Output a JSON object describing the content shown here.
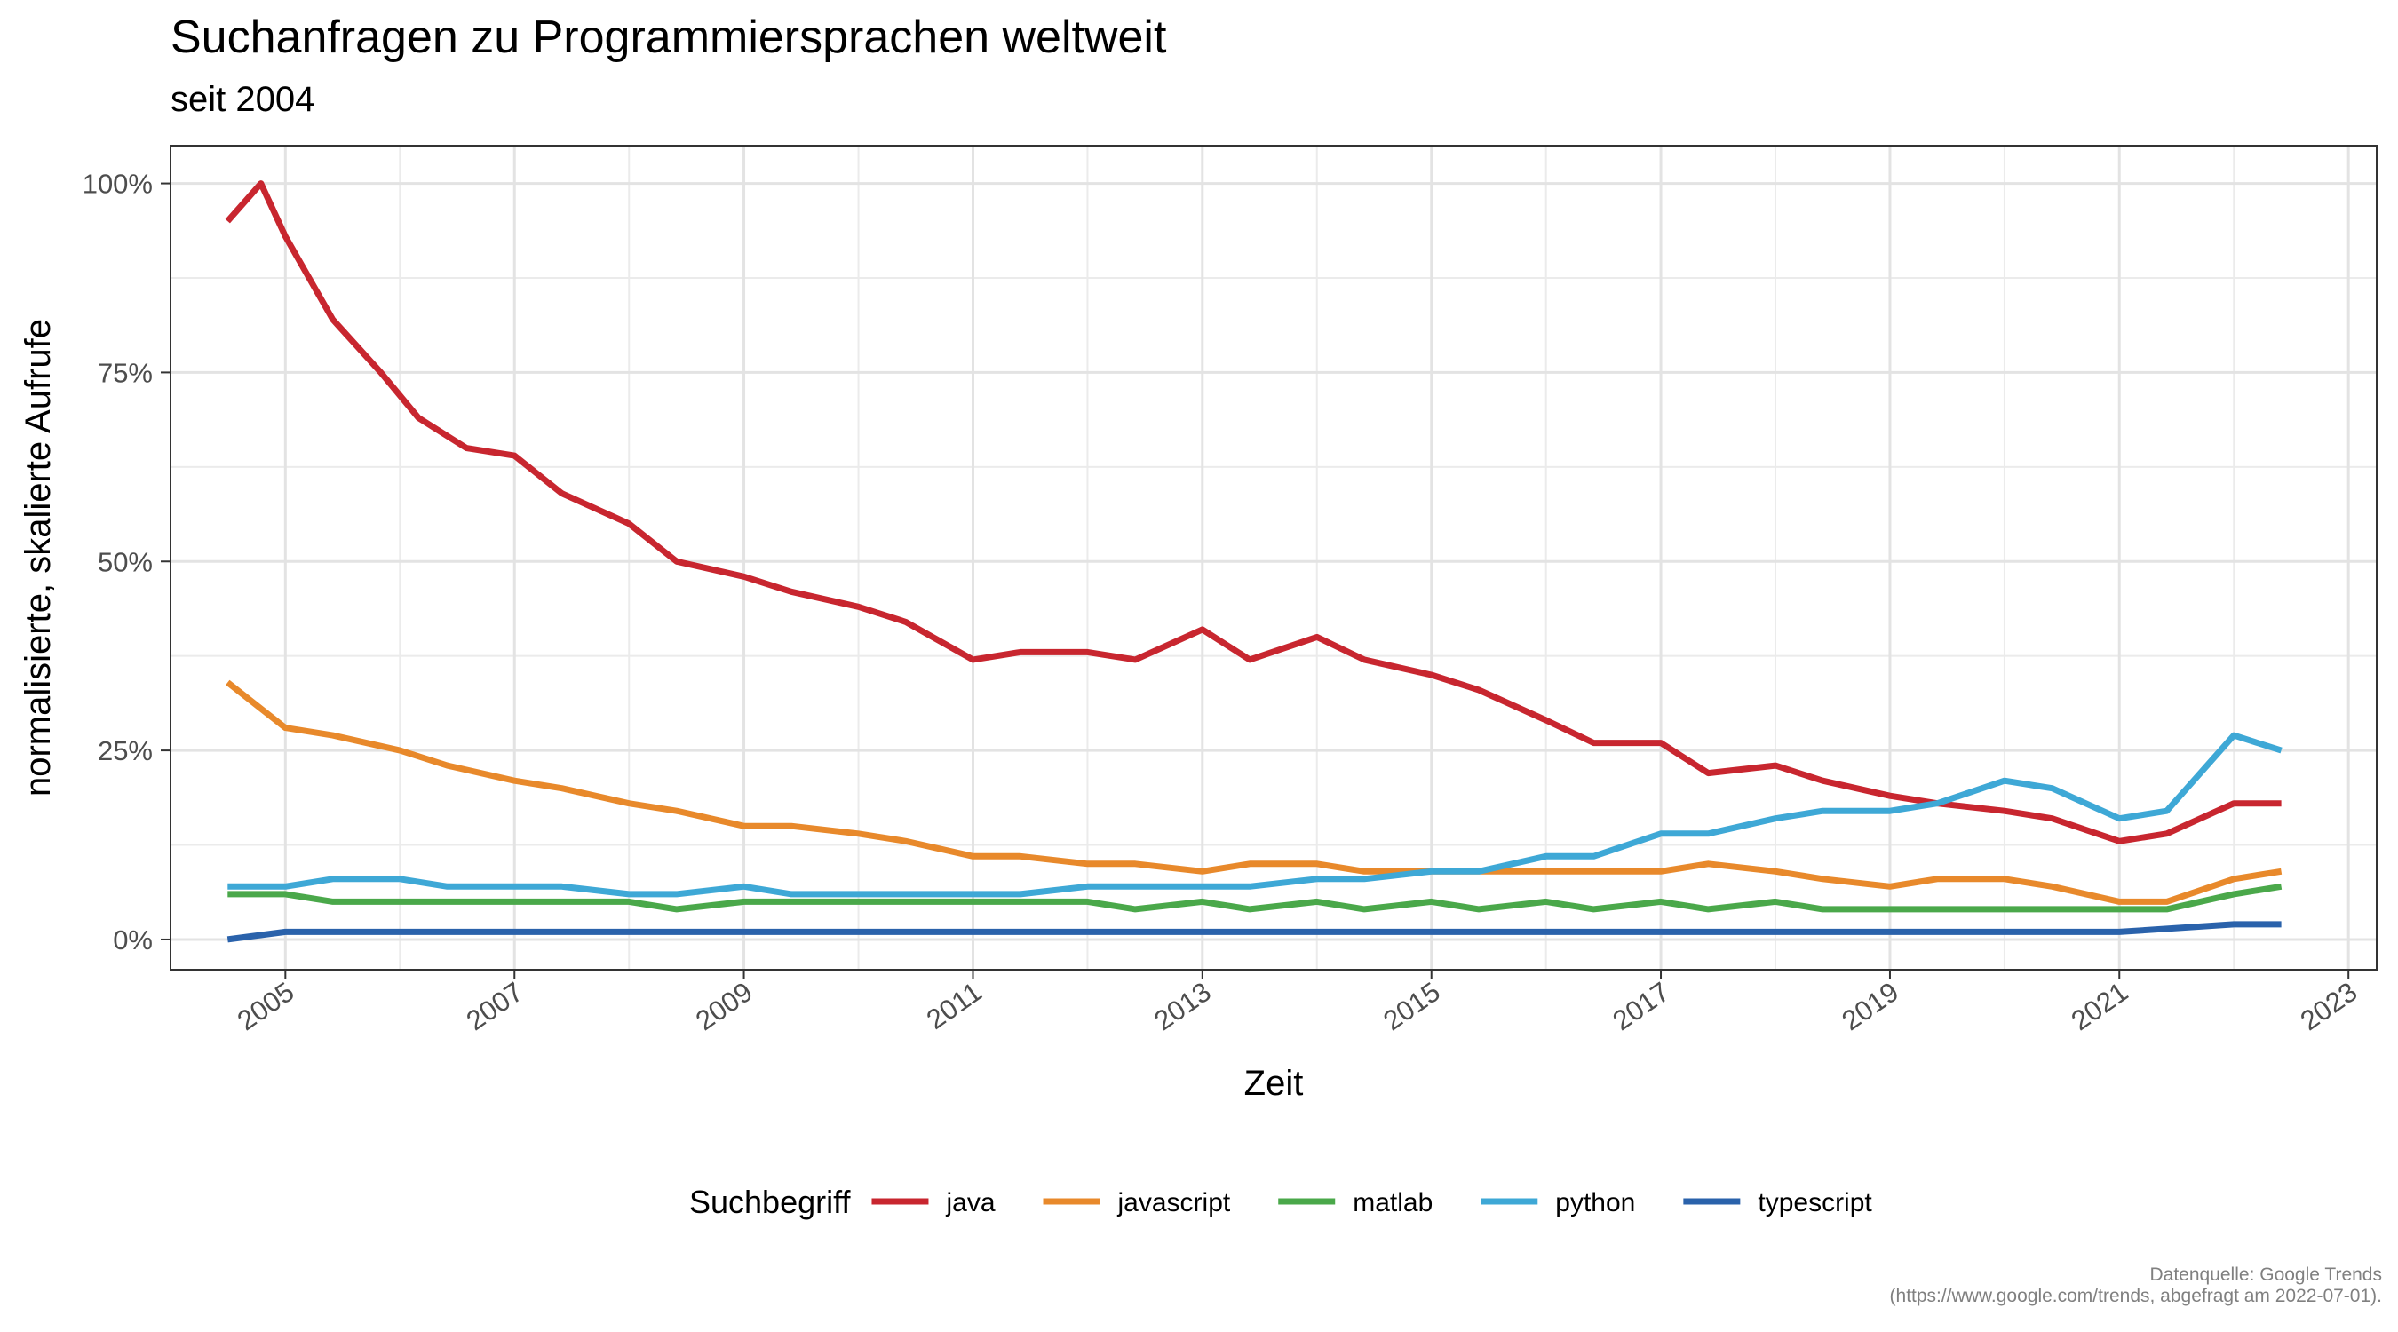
{
  "chart_data": {
    "type": "line",
    "title": "Suchanfragen zu Programmiersprachen weltweit",
    "subtitle": "seit 2004",
    "xlabel": "Zeit",
    "ylabel": "normalisierte, skalierte Aufrufe",
    "xlim": [
      "2004-01-01",
      "2023-04-01"
    ],
    "ylim": [
      -0.04,
      1.05
    ],
    "x_ticks": [
      "2005",
      "2007",
      "2009",
      "2011",
      "2013",
      "2015",
      "2017",
      "2019",
      "2021",
      "2023"
    ],
    "y_ticks": [
      {
        "value": 0,
        "label": "0%"
      },
      {
        "value": 0.25,
        "label": "25%"
      },
      {
        "value": 0.5,
        "label": "50%"
      },
      {
        "value": 0.75,
        "label": "75%"
      },
      {
        "value": 1.0,
        "label": "100%"
      }
    ],
    "grid": true,
    "legend": {
      "title": "Suchbegriff",
      "position": "bottom"
    },
    "series": [
      {
        "name": "java",
        "color": "#c8262f",
        "x": [
          "2004-07-01",
          "2004-10-15",
          "2005-01-01",
          "2005-06-01",
          "2005-11-01",
          "2006-03-01",
          "2006-08-01",
          "2007-01-01",
          "2007-06-01",
          "2008-01-01",
          "2008-06-01",
          "2009-01-01",
          "2009-06-01",
          "2010-01-01",
          "2010-06-01",
          "2011-01-01",
          "2011-06-01",
          "2012-01-01",
          "2012-06-01",
          "2013-01-01",
          "2013-06-01",
          "2014-01-01",
          "2014-06-01",
          "2015-01-01",
          "2015-06-01",
          "2016-01-01",
          "2016-06-01",
          "2017-01-01",
          "2017-06-01",
          "2018-01-01",
          "2018-06-01",
          "2019-01-01",
          "2019-06-01",
          "2020-01-01",
          "2020-06-01",
          "2021-01-01",
          "2021-06-01",
          "2022-01-01",
          "2022-06-01"
        ],
        "y": [
          0.95,
          1.0,
          0.93,
          0.82,
          0.75,
          0.69,
          0.65,
          0.64,
          0.59,
          0.55,
          0.5,
          0.48,
          0.46,
          0.44,
          0.42,
          0.37,
          0.38,
          0.38,
          0.37,
          0.41,
          0.37,
          0.4,
          0.37,
          0.35,
          0.33,
          0.29,
          0.26,
          0.26,
          0.22,
          0.23,
          0.21,
          0.19,
          0.18,
          0.17,
          0.16,
          0.13,
          0.14,
          0.18,
          0.18
        ]
      },
      {
        "name": "javascript",
        "color": "#e8892b",
        "x": [
          "2004-07-01",
          "2005-01-01",
          "2005-06-01",
          "2006-01-01",
          "2006-06-01",
          "2007-01-01",
          "2007-06-01",
          "2008-01-01",
          "2008-06-01",
          "2009-01-01",
          "2009-06-01",
          "2010-01-01",
          "2010-06-01",
          "2011-01-01",
          "2011-06-01",
          "2012-01-01",
          "2012-06-01",
          "2013-01-01",
          "2013-06-01",
          "2014-01-01",
          "2014-06-01",
          "2015-01-01",
          "2015-06-01",
          "2016-01-01",
          "2016-06-01",
          "2017-01-01",
          "2017-06-01",
          "2018-01-01",
          "2018-06-01",
          "2019-01-01",
          "2019-06-01",
          "2020-01-01",
          "2020-06-01",
          "2021-01-01",
          "2021-06-01",
          "2022-01-01",
          "2022-06-01"
        ],
        "y": [
          0.34,
          0.28,
          0.27,
          0.25,
          0.23,
          0.21,
          0.2,
          0.18,
          0.17,
          0.15,
          0.15,
          0.14,
          0.13,
          0.11,
          0.11,
          0.1,
          0.1,
          0.09,
          0.1,
          0.1,
          0.09,
          0.09,
          0.09,
          0.09,
          0.09,
          0.09,
          0.1,
          0.09,
          0.08,
          0.07,
          0.08,
          0.08,
          0.07,
          0.05,
          0.05,
          0.08,
          0.09
        ]
      },
      {
        "name": "matlab",
        "color": "#4aa84a",
        "x": [
          "2004-07-01",
          "2005-01-01",
          "2005-06-01",
          "2006-01-01",
          "2006-06-01",
          "2007-01-01",
          "2007-06-01",
          "2008-01-01",
          "2008-06-01",
          "2009-01-01",
          "2009-06-01",
          "2010-01-01",
          "2010-06-01",
          "2011-01-01",
          "2011-06-01",
          "2012-01-01",
          "2012-06-01",
          "2013-01-01",
          "2013-06-01",
          "2014-01-01",
          "2014-06-01",
          "2015-01-01",
          "2015-06-01",
          "2016-01-01",
          "2016-06-01",
          "2017-01-01",
          "2017-06-01",
          "2018-01-01",
          "2018-06-01",
          "2019-01-01",
          "2019-06-01",
          "2020-01-01",
          "2020-06-01",
          "2021-01-01",
          "2021-06-01",
          "2022-01-01",
          "2022-06-01"
        ],
        "y": [
          0.06,
          0.06,
          0.05,
          0.05,
          0.05,
          0.05,
          0.05,
          0.05,
          0.04,
          0.05,
          0.05,
          0.05,
          0.05,
          0.05,
          0.05,
          0.05,
          0.04,
          0.05,
          0.04,
          0.05,
          0.04,
          0.05,
          0.04,
          0.05,
          0.04,
          0.05,
          0.04,
          0.05,
          0.04,
          0.04,
          0.04,
          0.04,
          0.04,
          0.04,
          0.04,
          0.06,
          0.07
        ]
      },
      {
        "name": "python",
        "color": "#3ea8d6",
        "x": [
          "2004-07-01",
          "2005-01-01",
          "2005-06-01",
          "2006-01-01",
          "2006-06-01",
          "2007-01-01",
          "2007-06-01",
          "2008-01-01",
          "2008-06-01",
          "2009-01-01",
          "2009-06-01",
          "2010-01-01",
          "2010-06-01",
          "2011-01-01",
          "2011-06-01",
          "2012-01-01",
          "2012-06-01",
          "2013-01-01",
          "2013-06-01",
          "2014-01-01",
          "2014-06-01",
          "2015-01-01",
          "2015-06-01",
          "2016-01-01",
          "2016-06-01",
          "2017-01-01",
          "2017-06-01",
          "2018-01-01",
          "2018-06-01",
          "2019-01-01",
          "2019-06-01",
          "2020-01-01",
          "2020-06-01",
          "2021-01-01",
          "2021-06-01",
          "2022-01-01",
          "2022-06-01"
        ],
        "y": [
          0.07,
          0.07,
          0.08,
          0.08,
          0.07,
          0.07,
          0.07,
          0.06,
          0.06,
          0.07,
          0.06,
          0.06,
          0.06,
          0.06,
          0.06,
          0.07,
          0.07,
          0.07,
          0.07,
          0.08,
          0.08,
          0.09,
          0.09,
          0.11,
          0.11,
          0.14,
          0.14,
          0.16,
          0.17,
          0.17,
          0.18,
          0.21,
          0.2,
          0.16,
          0.17,
          0.27,
          0.25
        ]
      },
      {
        "name": "typescript",
        "color": "#2a62ab",
        "x": [
          "2004-07-01",
          "2005-01-01",
          "2006-01-01",
          "2007-01-01",
          "2008-01-01",
          "2009-01-01",
          "2010-01-01",
          "2011-01-01",
          "2012-01-01",
          "2013-01-01",
          "2014-01-01",
          "2015-01-01",
          "2016-01-01",
          "2017-01-01",
          "2018-01-01",
          "2019-01-01",
          "2020-01-01",
          "2021-01-01",
          "2022-01-01",
          "2022-06-01"
        ],
        "y": [
          0.0,
          0.01,
          0.01,
          0.01,
          0.01,
          0.01,
          0.01,
          0.01,
          0.01,
          0.01,
          0.01,
          0.01,
          0.01,
          0.01,
          0.01,
          0.01,
          0.01,
          0.01,
          0.02,
          0.02
        ]
      }
    ]
  },
  "caption": {
    "line1": "Datenquelle: Google Trends",
    "line2": "(https://www.google.com/trends, abgefragt am 2022-07-01)."
  }
}
